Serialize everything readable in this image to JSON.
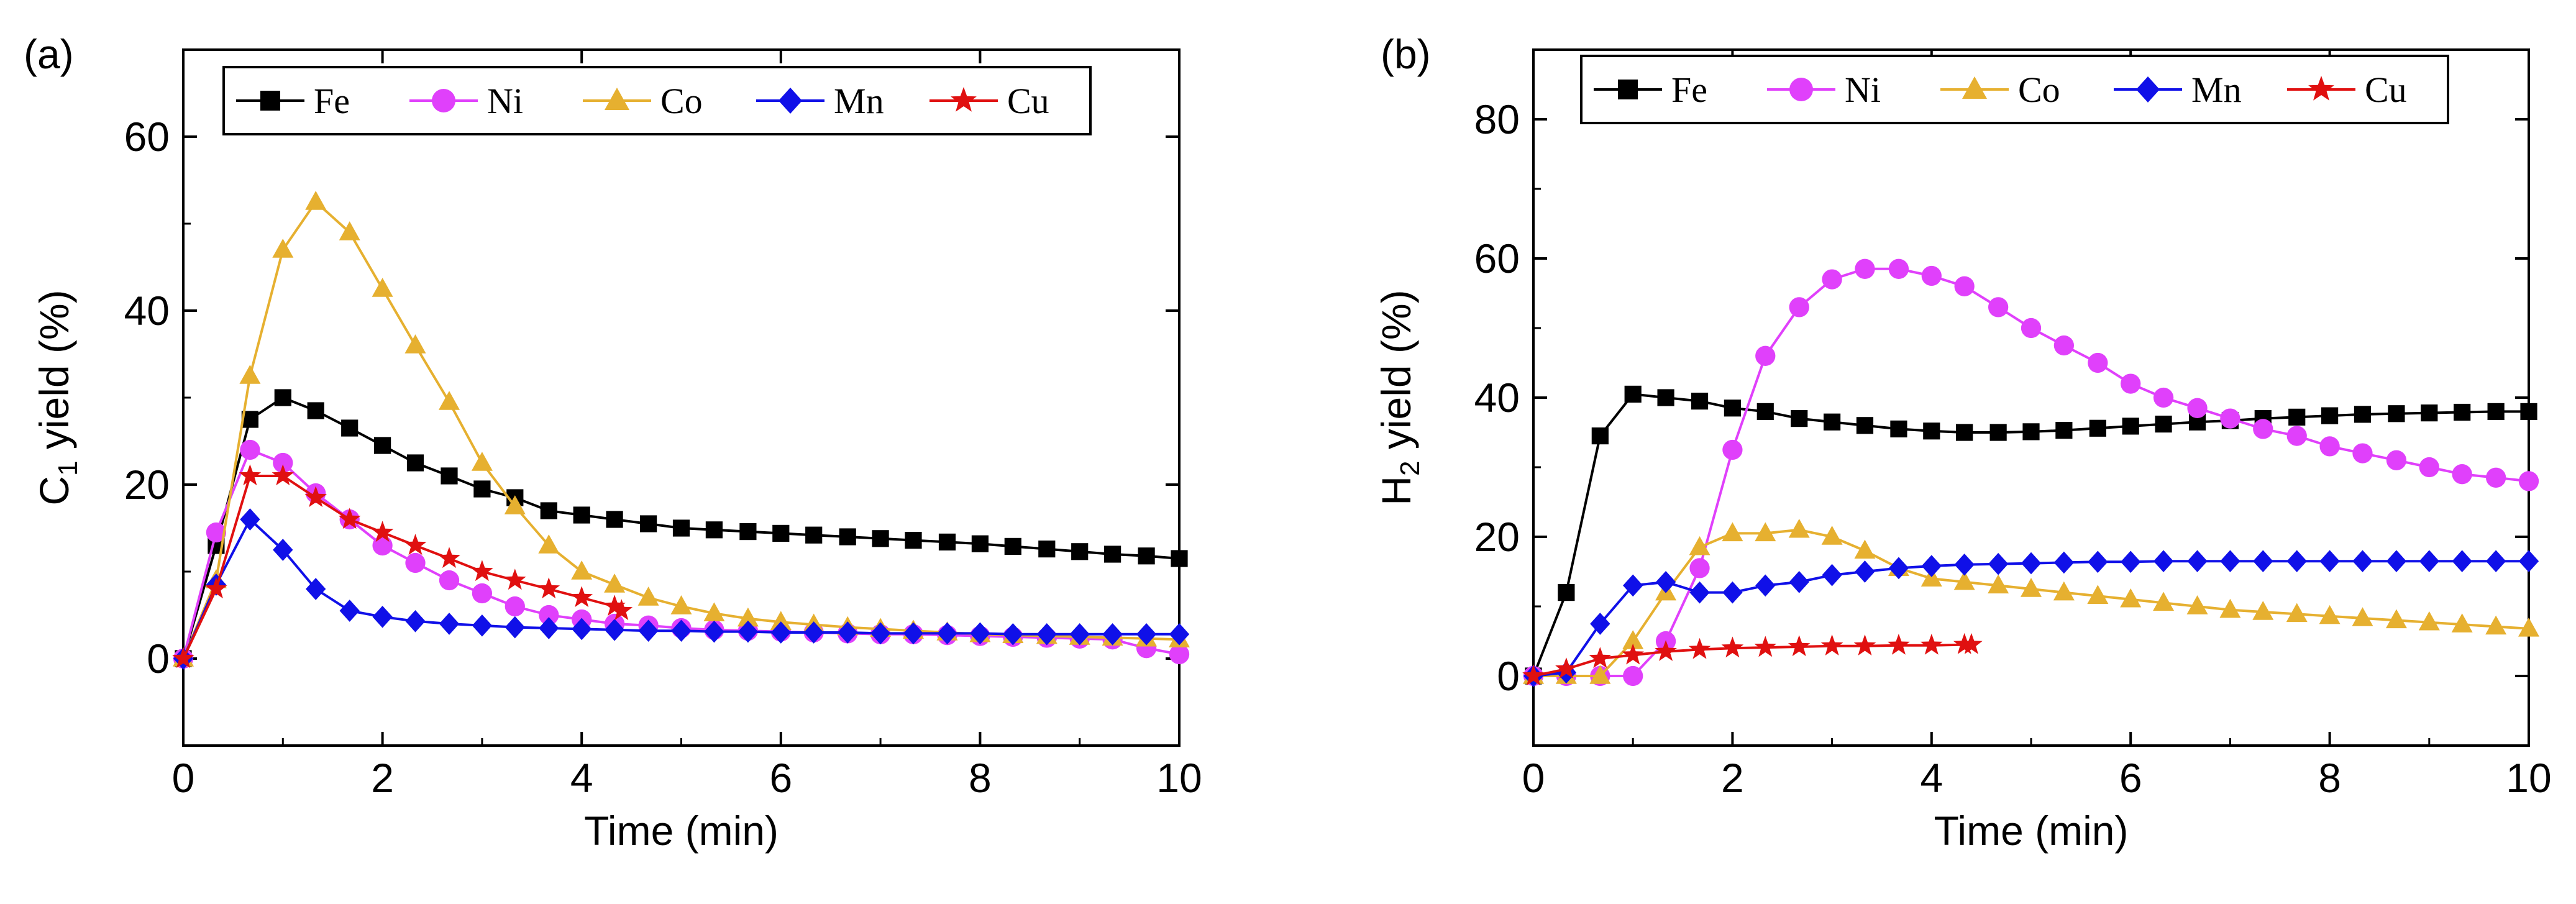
{
  "series_styles": {
    "Fe": {
      "color": "#000000",
      "marker": "square"
    },
    "Ni": {
      "color": "#e040fb",
      "marker": "circle"
    },
    "Co": {
      "color": "#e6b030",
      "marker": "triangle"
    },
    "Mn": {
      "color": "#1010e8",
      "marker": "diamond"
    },
    "Cu": {
      "color": "#e01010",
      "marker": "star"
    }
  },
  "chart_data": [
    {
      "type": "line",
      "panel_label": "(a)",
      "xlabel": "Time (min)",
      "ylabel_main": "C",
      "ylabel_sub": "1",
      "ylabel_rest": " yield (%)",
      "xlim": [
        0,
        10
      ],
      "ylim": [
        -10,
        70
      ],
      "xticks": [
        0,
        2,
        4,
        6,
        8,
        10
      ],
      "yticks": [
        0,
        20,
        40,
        60
      ],
      "legend": [
        "Fe",
        "Ni",
        "Co",
        "Mn",
        "Cu"
      ],
      "series": [
        {
          "name": "Fe",
          "x": [
            0,
            0.33,
            0.67,
            1.0,
            1.33,
            1.67,
            2.0,
            2.33,
            2.67,
            3.0,
            3.33,
            3.67,
            4.0,
            4.33,
            4.67,
            5.0,
            5.33,
            5.67,
            6.0,
            6.33,
            6.67,
            7.0,
            7.33,
            7.67,
            8.0,
            8.33,
            8.67,
            9.0,
            9.33,
            9.67,
            10.0
          ],
          "y": [
            0,
            13,
            27.5,
            30,
            28.5,
            26.5,
            24.5,
            22.5,
            21,
            19.5,
            18.5,
            17,
            16.5,
            16,
            15.5,
            15,
            14.8,
            14.6,
            14.4,
            14.2,
            14,
            13.8,
            13.6,
            13.4,
            13.2,
            12.9,
            12.6,
            12.3,
            12.0,
            11.8,
            11.5
          ]
        },
        {
          "name": "Ni",
          "x": [
            0,
            0.33,
            0.67,
            1.0,
            1.33,
            1.67,
            2.0,
            2.33,
            2.67,
            3.0,
            3.33,
            3.67,
            4.0,
            4.33,
            4.67,
            5.0,
            5.33,
            5.67,
            6.0,
            6.33,
            6.67,
            7.0,
            7.33,
            7.67,
            8.0,
            8.33,
            8.67,
            9.0,
            9.33,
            9.67,
            10.0
          ],
          "y": [
            0,
            14.5,
            24,
            22.5,
            19,
            16,
            13,
            11,
            9,
            7.5,
            6,
            5,
            4.5,
            4,
            3.8,
            3.5,
            3.3,
            3.2,
            3.1,
            3.0,
            2.9,
            2.8,
            2.8,
            2.7,
            2.6,
            2.5,
            2.4,
            2.3,
            2.2,
            1.2,
            0.5
          ]
        },
        {
          "name": "Co",
          "x": [
            0,
            0.33,
            0.67,
            1.0,
            1.33,
            1.67,
            2.0,
            2.33,
            2.67,
            3.0,
            3.33,
            3.67,
            4.0,
            4.33,
            4.67,
            5.0,
            5.33,
            5.67,
            6.0,
            6.33,
            6.67,
            7.0,
            7.33,
            7.67,
            8.0,
            8.33,
            8.67,
            9.0,
            9.33,
            9.67,
            10.0
          ],
          "y": [
            0,
            9,
            32.5,
            47,
            52.5,
            49,
            42.5,
            36,
            29.5,
            22.5,
            17.5,
            13,
            10,
            8.5,
            7,
            6,
            5.2,
            4.6,
            4.2,
            3.9,
            3.6,
            3.4,
            3.2,
            3.0,
            2.8,
            2.7,
            2.6,
            2.5,
            2.4,
            2.3,
            2.2
          ]
        },
        {
          "name": "Mn",
          "x": [
            0,
            0.33,
            0.67,
            1.0,
            1.33,
            1.67,
            2.0,
            2.33,
            2.67,
            3.0,
            3.33,
            3.67,
            4.0,
            4.33,
            4.67,
            5.0,
            5.33,
            5.67,
            6.0,
            6.33,
            6.67,
            7.0,
            7.33,
            7.67,
            8.0,
            8.33,
            8.67,
            9.0,
            9.33,
            9.67,
            10.0
          ],
          "y": [
            0,
            8.5,
            16,
            12.5,
            8,
            5.5,
            4.8,
            4.3,
            4.0,
            3.8,
            3.6,
            3.5,
            3.4,
            3.3,
            3.2,
            3.2,
            3.1,
            3.1,
            3.0,
            3.0,
            3.0,
            2.9,
            2.9,
            2.9,
            2.9,
            2.8,
            2.8,
            2.8,
            2.8,
            2.8,
            2.8
          ]
        },
        {
          "name": "Cu",
          "x": [
            0,
            0.33,
            0.67,
            1.0,
            1.33,
            1.67,
            2.0,
            2.33,
            2.67,
            3.0,
            3.33,
            3.67,
            4.0,
            4.33,
            4.4
          ],
          "y": [
            0,
            8,
            21,
            21,
            18.5,
            16,
            14.5,
            13,
            11.5,
            10,
            9,
            8,
            7,
            6,
            5.5
          ]
        }
      ]
    },
    {
      "type": "line",
      "panel_label": "(b)",
      "xlabel": "Time (min)",
      "ylabel_main": "H",
      "ylabel_sub": "2",
      "ylabel_rest": " yield (%)",
      "xlim": [
        0,
        10
      ],
      "ylim": [
        -10,
        90
      ],
      "xticks": [
        0,
        2,
        4,
        6,
        8,
        10
      ],
      "yticks": [
        0,
        20,
        40,
        60,
        80
      ],
      "legend": [
        "Fe",
        "Ni",
        "Co",
        "Mn",
        "Cu"
      ],
      "series": [
        {
          "name": "Fe",
          "x": [
            0,
            0.33,
            0.67,
            1.0,
            1.33,
            1.67,
            2.0,
            2.33,
            2.67,
            3.0,
            3.33,
            3.67,
            4.0,
            4.33,
            4.67,
            5.0,
            5.33,
            5.67,
            6.0,
            6.33,
            6.67,
            7.0,
            7.33,
            7.67,
            8.0,
            8.33,
            8.67,
            9.0,
            9.33,
            9.67,
            10.0
          ],
          "y": [
            0,
            12,
            34.5,
            40.5,
            40,
            39.5,
            38.5,
            38,
            37,
            36.5,
            36,
            35.5,
            35.2,
            35.0,
            35.0,
            35.1,
            35.3,
            35.6,
            35.9,
            36.2,
            36.5,
            36.7,
            37.0,
            37.2,
            37.4,
            37.6,
            37.7,
            37.8,
            37.9,
            38.0,
            38.0
          ]
        },
        {
          "name": "Ni",
          "x": [
            0,
            0.33,
            0.67,
            1.0,
            1.33,
            1.67,
            2.0,
            2.33,
            2.67,
            3.0,
            3.33,
            3.67,
            4.0,
            4.33,
            4.67,
            5.0,
            5.33,
            5.67,
            6.0,
            6.33,
            6.67,
            7.0,
            7.33,
            7.67,
            8.0,
            8.33,
            8.67,
            9.0,
            9.33,
            9.67,
            10.0
          ],
          "y": [
            0,
            0,
            0,
            0,
            5,
            15.5,
            32.5,
            46,
            53,
            57,
            58.5,
            58.5,
            57.5,
            56,
            53,
            50,
            47.5,
            45,
            42,
            40,
            38.5,
            37,
            35.5,
            34.5,
            33,
            32,
            31,
            30,
            29,
            28.5,
            28
          ]
        },
        {
          "name": "Co",
          "x": [
            0,
            0.33,
            0.67,
            1.0,
            1.33,
            1.67,
            2.0,
            2.33,
            2.67,
            3.0,
            3.33,
            3.67,
            4.0,
            4.33,
            4.67,
            5.0,
            5.33,
            5.67,
            6.0,
            6.33,
            6.67,
            7.0,
            7.33,
            7.67,
            8.0,
            8.33,
            8.67,
            9.0,
            9.33,
            9.67,
            10.0
          ],
          "y": [
            0,
            0,
            0,
            5,
            12,
            18.5,
            20.5,
            20.5,
            21,
            20,
            18,
            15.5,
            14,
            13.5,
            13,
            12.5,
            12,
            11.5,
            11,
            10.5,
            10,
            9.5,
            9.2,
            8.9,
            8.6,
            8.3,
            8.0,
            7.7,
            7.4,
            7.1,
            6.8
          ]
        },
        {
          "name": "Mn",
          "x": [
            0,
            0.33,
            0.67,
            1.0,
            1.33,
            1.67,
            2.0,
            2.33,
            2.67,
            3.0,
            3.33,
            3.67,
            4.0,
            4.33,
            4.67,
            5.0,
            5.33,
            5.67,
            6.0,
            6.33,
            6.67,
            7.0,
            7.33,
            7.67,
            8.0,
            8.33,
            8.67,
            9.0,
            9.33,
            9.67,
            10.0
          ],
          "y": [
            0,
            0.5,
            7.5,
            13,
            13.5,
            12,
            12,
            13,
            13.5,
            14.5,
            15,
            15.5,
            15.8,
            16,
            16.1,
            16.2,
            16.3,
            16.4,
            16.4,
            16.5,
            16.5,
            16.5,
            16.5,
            16.5,
            16.5,
            16.5,
            16.5,
            16.5,
            16.5,
            16.5,
            16.5
          ]
        },
        {
          "name": "Cu",
          "x": [
            0,
            0.33,
            0.67,
            1.0,
            1.33,
            1.67,
            2.0,
            2.33,
            2.67,
            3.0,
            3.33,
            3.67,
            4.0,
            4.33,
            4.4
          ],
          "y": [
            0,
            1,
            2.5,
            3,
            3.5,
            3.8,
            4,
            4.1,
            4.2,
            4.3,
            4.3,
            4.4,
            4.4,
            4.5,
            4.5
          ]
        }
      ]
    }
  ]
}
